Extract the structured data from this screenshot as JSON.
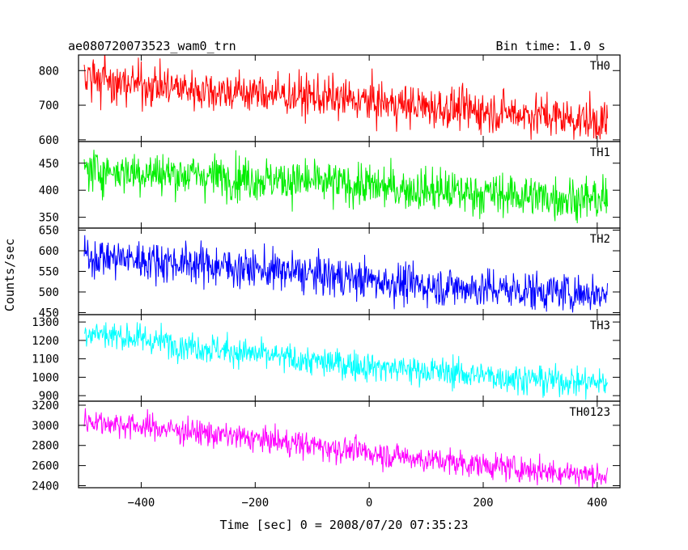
{
  "chart_data": {
    "type": "line",
    "title_left": "ae080720073523_wam0_trn",
    "title_right": "Bin time: 1.0 s",
    "xlabel": "Time [sec] 0 = 2008/07/20 07:35:23",
    "ylabel": "Counts/sec",
    "xlim": [
      -510,
      440
    ],
    "x_range_data": [
      -500,
      418
    ],
    "x_ticks": [
      -400,
      -200,
      0,
      200,
      400
    ],
    "x_tick_labels": [
      "−400",
      "−200",
      "0",
      "200",
      "400"
    ],
    "grid": false,
    "panels": [
      {
        "name": "TH0",
        "color": "#ff0000",
        "ylim": [
          595,
          845
        ],
        "yticks": [
          600,
          700,
          800
        ],
        "yticklabels": [
          "600",
          "700",
          "800"
        ],
        "trend": [
          [
            -500,
            775
          ],
          [
            -300,
            745
          ],
          [
            -100,
            725
          ],
          [
            100,
            695
          ],
          [
            300,
            672
          ],
          [
            418,
            650
          ]
        ],
        "noise": 30
      },
      {
        "name": "TH1",
        "color": "#00ee00",
        "ylim": [
          330,
          490
        ],
        "yticks": [
          350,
          400,
          450
        ],
        "yticklabels": [
          "350",
          "400",
          "450"
        ],
        "trend": [
          [
            -500,
            438
          ],
          [
            -300,
            428
          ],
          [
            -100,
            415
          ],
          [
            100,
            400
          ],
          [
            300,
            388
          ],
          [
            418,
            382
          ]
        ],
        "noise": 20
      },
      {
        "name": "TH2",
        "color": "#0000ff",
        "ylim": [
          445,
          655
        ],
        "yticks": [
          450,
          500,
          550,
          600,
          650
        ],
        "yticklabels": [
          "450",
          "500",
          "550",
          "600",
          "650"
        ],
        "trend": [
          [
            -500,
            588
          ],
          [
            -300,
            568
          ],
          [
            -100,
            543
          ],
          [
            100,
            515
          ],
          [
            300,
            502
          ],
          [
            418,
            495
          ]
        ],
        "noise": 24
      },
      {
        "name": "TH3",
        "color": "#00ffff",
        "ylim": [
          870,
          1340
        ],
        "yticks": [
          900,
          1000,
          1100,
          1200,
          1300
        ],
        "yticklabels": [
          "900",
          "1000",
          "1100",
          "1200",
          "1300"
        ],
        "trend": [
          [
            -500,
            1250
          ],
          [
            -300,
            1165
          ],
          [
            -100,
            1085
          ],
          [
            100,
            1035
          ],
          [
            300,
            985
          ],
          [
            418,
            970
          ]
        ],
        "noise": 40
      },
      {
        "name": "TH0123",
        "color": "#ff00ff",
        "ylim": [
          2380,
          3240
        ],
        "yticks": [
          2400,
          2600,
          2800,
          3000,
          3200
        ],
        "yticklabels": [
          "2400",
          "2600",
          "2800",
          "3000",
          "3200"
        ],
        "trend": [
          [
            -500,
            3050
          ],
          [
            -300,
            2930
          ],
          [
            -100,
            2800
          ],
          [
            100,
            2660
          ],
          [
            300,
            2550
          ],
          [
            418,
            2500
          ]
        ],
        "noise": 65
      }
    ]
  }
}
